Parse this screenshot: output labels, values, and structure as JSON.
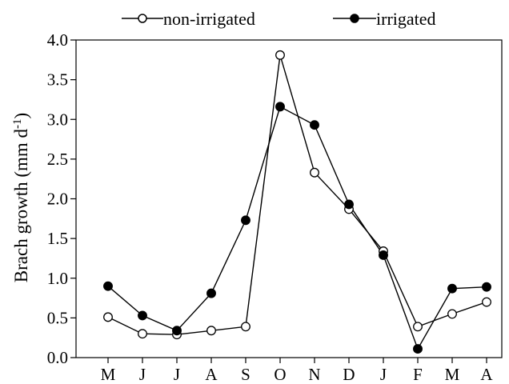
{
  "chart_data": {
    "type": "line",
    "categories": [
      "M",
      "J",
      "J",
      "A",
      "S",
      "O",
      "N",
      "D",
      "J",
      "F",
      "M",
      "A"
    ],
    "ylabel": "Brach growth (mm d",
    "ylabel_superscript": "-1",
    "ylabel_suffix": ")",
    "ylim": [
      0,
      4
    ],
    "yticks": [
      "0.0",
      "0.5",
      "1.0",
      "1.5",
      "2.0",
      "2.5",
      "3.0",
      "3.5",
      "4.0"
    ],
    "grid": false,
    "legend_position": "top",
    "series": [
      {
        "name": "non-irrigated",
        "marker": "open-circle",
        "color": "#000000",
        "values": [
          0.51,
          0.3,
          0.29,
          0.34,
          0.39,
          3.81,
          2.33,
          1.87,
          1.34,
          0.39,
          0.55,
          0.7
        ]
      },
      {
        "name": "irrigated",
        "marker": "filled-circle",
        "color": "#000000",
        "values": [
          0.9,
          0.53,
          0.34,
          0.81,
          1.73,
          3.16,
          2.93,
          1.93,
          1.29,
          0.11,
          0.87,
          0.89
        ]
      }
    ]
  }
}
